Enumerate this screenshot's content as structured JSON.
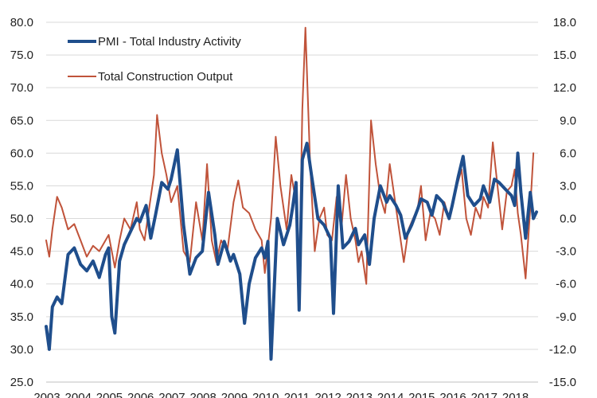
{
  "chart_data": {
    "type": "line",
    "x_years": [
      "2003",
      "2004",
      "2005",
      "2006",
      "2007",
      "2008",
      "2009",
      "2010",
      "2011",
      "2012",
      "2013",
      "2014",
      "2015",
      "2016",
      "2017",
      "2018"
    ],
    "left_axis": {
      "ylim": [
        25,
        80
      ],
      "ticks": [
        "80.0",
        "75.0",
        "70.0",
        "65.0",
        "60.0",
        "55.0",
        "50.0",
        "45.0",
        "40.0",
        "35.0",
        "30.0",
        "25.0"
      ]
    },
    "right_axis": {
      "ylim": [
        -15,
        18
      ],
      "ticks": [
        "18.0",
        "15.0",
        "12.0",
        "9.0",
        "6.0",
        "3.0",
        "0.0",
        "-3.0",
        "-6.0",
        "-9.0",
        "-12.0",
        "-15.0"
      ]
    },
    "legend_position": "top-left",
    "grid": "horizontal",
    "series": [
      {
        "name": "PMI - Total Industry Activity",
        "axis": "left",
        "color": "#1f4e8c",
        "x": [
          2003.0,
          2003.1,
          2003.2,
          2003.35,
          2003.5,
          2003.7,
          2003.9,
          2004.1,
          2004.3,
          2004.5,
          2004.7,
          2004.9,
          2005.0,
          2005.1,
          2005.2,
          2005.35,
          2005.5,
          2005.7,
          2005.9,
          2006.0,
          2006.2,
          2006.35,
          2006.5,
          2006.7,
          2006.9,
          2007.0,
          2007.2,
          2007.4,
          2007.6,
          2007.8,
          2008.0,
          2008.2,
          2008.4,
          2008.5,
          2008.7,
          2008.9,
          2009.0,
          2009.2,
          2009.35,
          2009.5,
          2009.7,
          2009.9,
          2010.0,
          2010.1,
          2010.2,
          2010.4,
          2010.6,
          2010.8,
          2010.9,
          2011.0,
          2011.1,
          2011.2,
          2011.35,
          2011.5,
          2011.7,
          2011.9,
          2012.0,
          2012.1,
          2012.2,
          2012.35,
          2012.5,
          2012.7,
          2012.9,
          2013.0,
          2013.2,
          2013.35,
          2013.5,
          2013.7,
          2013.9,
          2014.0,
          2014.2,
          2014.35,
          2014.5,
          2014.7,
          2014.9,
          2015.0,
          2015.2,
          2015.35,
          2015.5,
          2015.7,
          2015.9,
          2016.0,
          2016.2,
          2016.35,
          2016.5,
          2016.7,
          2016.9,
          2017.0,
          2017.2,
          2017.35,
          2017.5,
          2017.7,
          2017.9,
          2018.0,
          2018.1,
          2018.2,
          2018.35,
          2018.5,
          2018.6,
          2018.7
        ],
        "values": [
          33.5,
          30.0,
          36.5,
          38.0,
          37.0,
          44.5,
          45.5,
          43.0,
          42.0,
          43.5,
          41.0,
          44.5,
          45.5,
          35.0,
          32.5,
          43.5,
          46.0,
          48.0,
          50.0,
          49.5,
          52.0,
          47.0,
          50.5,
          55.5,
          54.5,
          56.0,
          60.5,
          49.0,
          41.5,
          44.0,
          45.0,
          54.0,
          47.5,
          43.0,
          46.5,
          43.5,
          44.5,
          41.5,
          34.0,
          40.0,
          44.0,
          45.5,
          44.0,
          46.5,
          28.5,
          50.0,
          46.0,
          49.0,
          52.0,
          55.5,
          36.0,
          59.0,
          61.5,
          56.5,
          50.0,
          49.0,
          48.0,
          47.0,
          35.5,
          55.0,
          45.5,
          46.5,
          48.5,
          46.0,
          47.5,
          43.0,
          50.0,
          55.0,
          52.5,
          53.5,
          52.0,
          50.5,
          47.0,
          49.0,
          51.5,
          53.0,
          52.5,
          50.5,
          53.5,
          52.5,
          50.0,
          52.0,
          56.5,
          59.5,
          53.5,
          52.0,
          53.0,
          55.0,
          52.5,
          56.0,
          55.5,
          54.5,
          53.5,
          52.0,
          60.0,
          54.0,
          47.0,
          54.0,
          50.0,
          51.0
        ]
      },
      {
        "name": "Total Construction Output",
        "axis": "right",
        "color": "#c0533a",
        "x": [
          2003.0,
          2003.1,
          2003.2,
          2003.35,
          2003.5,
          2003.7,
          2003.9,
          2004.1,
          2004.3,
          2004.5,
          2004.7,
          2004.9,
          2005.0,
          2005.1,
          2005.2,
          2005.35,
          2005.5,
          2005.7,
          2005.9,
          2006.0,
          2006.15,
          2006.3,
          2006.45,
          2006.55,
          2006.7,
          2006.85,
          2007.0,
          2007.2,
          2007.4,
          2007.6,
          2007.8,
          2008.0,
          2008.15,
          2008.3,
          2008.45,
          2008.6,
          2008.8,
          2009.0,
          2009.15,
          2009.3,
          2009.5,
          2009.7,
          2009.9,
          2010.0,
          2010.2,
          2010.35,
          2010.5,
          2010.7,
          2010.85,
          2011.0,
          2011.1,
          2011.2,
          2011.3,
          2011.45,
          2011.6,
          2011.75,
          2011.9,
          2012.0,
          2012.15,
          2012.3,
          2012.45,
          2012.6,
          2012.75,
          2012.9,
          2013.0,
          2013.1,
          2013.25,
          2013.4,
          2013.55,
          2013.7,
          2013.85,
          2014.0,
          2014.15,
          2014.3,
          2014.45,
          2014.6,
          2014.75,
          2014.9,
          2015.0,
          2015.15,
          2015.3,
          2015.45,
          2015.6,
          2015.75,
          2015.9,
          2016.0,
          2016.15,
          2016.3,
          2016.45,
          2016.6,
          2016.75,
          2016.9,
          2017.0,
          2017.15,
          2017.3,
          2017.45,
          2017.6,
          2017.75,
          2017.9,
          2018.0,
          2018.1,
          2018.2,
          2018.35,
          2018.5,
          2018.6
        ],
        "values": [
          -2.0,
          -3.5,
          -1.0,
          2.0,
          1.0,
          -1.0,
          -0.5,
          -2.0,
          -3.5,
          -2.5,
          -3.0,
          -2.0,
          -1.5,
          -3.0,
          -4.5,
          -2.0,
          0.0,
          -1.0,
          1.5,
          -1.0,
          -2.0,
          1.0,
          4.0,
          9.5,
          6.0,
          4.0,
          1.5,
          3.0,
          -3.0,
          -4.0,
          1.5,
          -2.0,
          5.0,
          -2.0,
          -4.0,
          -2.0,
          -3.0,
          1.5,
          3.5,
          1.0,
          0.5,
          -1.0,
          -2.0,
          -5.0,
          0.0,
          7.5,
          3.0,
          -1.0,
          4.0,
          1.5,
          -6.0,
          10.0,
          17.5,
          5.0,
          -3.0,
          0.0,
          1.0,
          -1.5,
          -2.0,
          2.0,
          -1.0,
          4.0,
          0.0,
          -2.0,
          -4.0,
          -3.0,
          -6.0,
          9.0,
          5.0,
          2.0,
          0.5,
          5.0,
          2.0,
          -1.0,
          -4.0,
          -1.0,
          0.0,
          1.0,
          3.0,
          -2.0,
          0.5,
          0.0,
          -1.5,
          1.5,
          0.0,
          1.5,
          3.0,
          4.5,
          0.0,
          -1.5,
          1.0,
          0.0,
          2.0,
          1.0,
          7.0,
          3.0,
          -1.0,
          2.5,
          3.0,
          4.5,
          0.5,
          -1.5,
          -5.5,
          1.0,
          6.0
        ]
      }
    ]
  }
}
